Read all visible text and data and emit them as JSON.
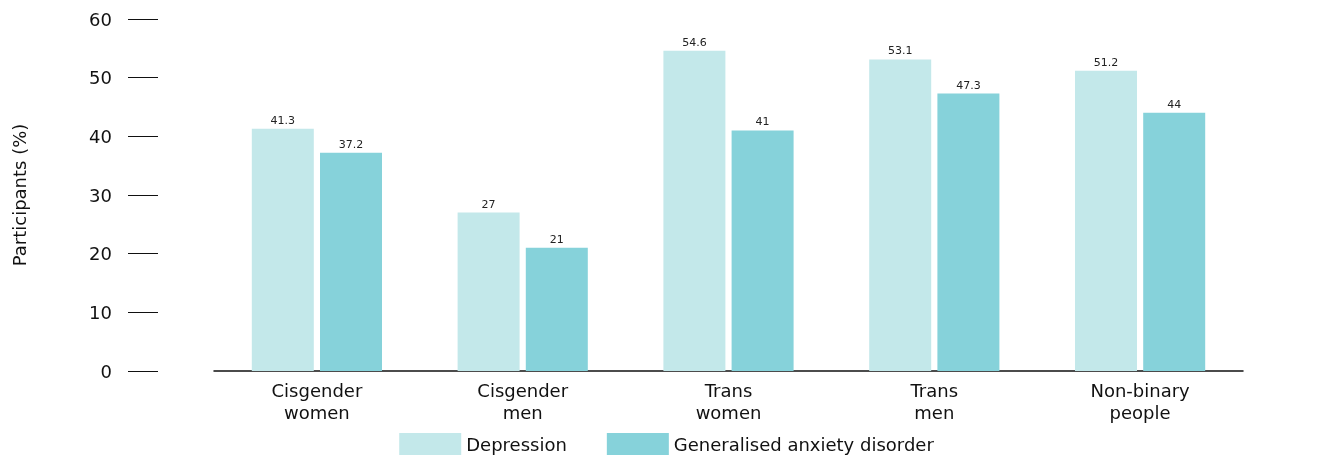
{
  "chart_data": {
    "type": "bar",
    "ylabel": "Participants (%)",
    "categories": [
      "Cisgender\nwomen",
      "Cisgender\nmen",
      "Trans\nwomen",
      "Trans\nmen",
      "Non-binary\npeople"
    ],
    "series": [
      {
        "name": "Depression",
        "color": "#c3e8ea",
        "values": [
          41.3,
          27,
          54.6,
          53.1,
          51.2
        ]
      },
      {
        "name": "Generalised anxiety disorder",
        "color": "#86d2da",
        "values": [
          37.2,
          21,
          41,
          47.3,
          44
        ]
      }
    ],
    "ylim": [
      0,
      60
    ],
    "yticks": [
      0,
      10,
      20,
      30,
      40,
      50,
      60
    ],
    "grid": false,
    "legend": "bottom",
    "data_labels": true
  }
}
